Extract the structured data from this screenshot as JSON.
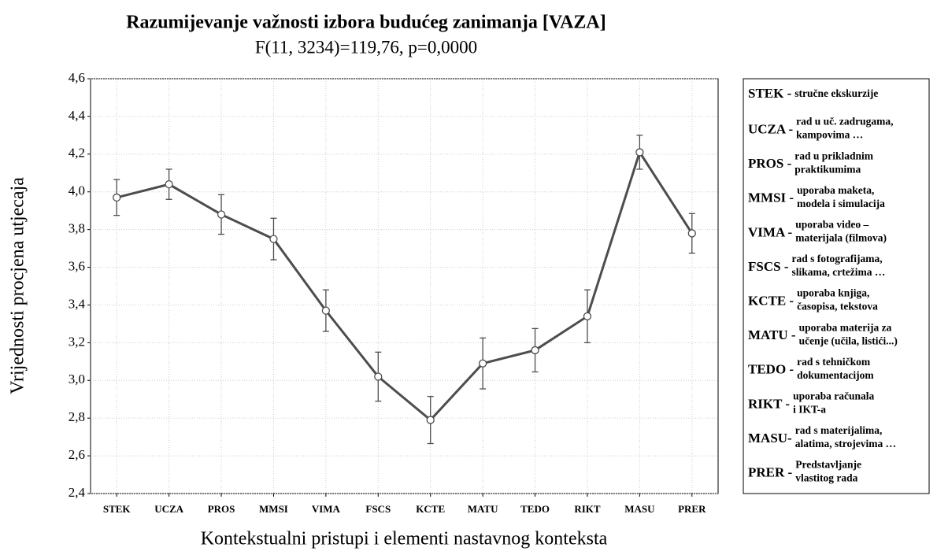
{
  "chart_data": {
    "type": "line",
    "title": "Razumijevanje važnosti izbora budućeg zanimanja [VAZA]",
    "subtitle": "F(11, 3234)=119,76, p=0,0000",
    "x_label": "Kontekstualni pristupi i elementi nastavnog konteksta",
    "y_label": "Vrijednosti procjena utjecaja",
    "categories": [
      "STEK",
      "UCZA",
      "PROS",
      "MMSI",
      "VIMA",
      "FSCS",
      "KCTE",
      "MATU",
      "TEDO",
      "RIKT",
      "MASU",
      "PRER"
    ],
    "values": [
      3.97,
      4.04,
      3.88,
      3.75,
      3.37,
      3.02,
      2.79,
      3.09,
      3.16,
      3.34,
      4.21,
      3.78
    ],
    "errors": [
      0.095,
      0.08,
      0.105,
      0.11,
      0.11,
      0.13,
      0.125,
      0.135,
      0.115,
      0.14,
      0.09,
      0.105
    ],
    "color": "#4d4d4d",
    "ylim": [
      2.4,
      4.6
    ],
    "yticks": [
      {
        "value": 2.4,
        "label": "2,4"
      },
      {
        "value": 2.6,
        "label": "2,6"
      },
      {
        "value": 2.8,
        "label": "2,8"
      },
      {
        "value": 3.0,
        "label": "3,0"
      },
      {
        "value": 3.2,
        "label": "3,2"
      },
      {
        "value": 3.4,
        "label": "3,4"
      },
      {
        "value": 3.6,
        "label": "3,6"
      },
      {
        "value": 3.8,
        "label": "3,8"
      },
      {
        "value": 4.0,
        "label": "4,0"
      },
      {
        "value": 4.2,
        "label": "4,2"
      },
      {
        "value": 4.4,
        "label": "4,4"
      },
      {
        "value": 4.6,
        "label": "4,6"
      }
    ],
    "grid": true,
    "legend": [
      {
        "code": "STEK -",
        "lines": [
          "stručne ekskurzije"
        ]
      },
      {
        "code": "UCZA -",
        "lines": [
          "rad u uč. zadrugama,",
          "kampovima …"
        ]
      },
      {
        "code": "PROS -",
        "lines": [
          "rad u prikladnim",
          "praktikumima"
        ]
      },
      {
        "code": "MMSI -",
        "lines": [
          "uporaba maketa,",
          "modela i simulacija"
        ]
      },
      {
        "code": "VIMA -",
        "lines": [
          "uporaba video –",
          "materijala (filmova)"
        ]
      },
      {
        "code": "FSCS -",
        "lines": [
          "rad s fotografijama,",
          "slikama, crtežima …"
        ]
      },
      {
        "code": "KCTE -",
        "lines": [
          "uporaba knjiga,",
          "časopisa, tekstova"
        ]
      },
      {
        "code": "MATU -",
        "lines": [
          "uporaba materija za",
          "učenje (učila, listići...)"
        ]
      },
      {
        "code": "TEDO -",
        "lines": [
          "rad s tehničkom",
          "dokumentacijom"
        ]
      },
      {
        "code": "RIKT -",
        "lines": [
          "uporaba računala",
          "i IKT-a"
        ]
      },
      {
        "code": "MASU-",
        "lines": [
          "rad s materijalima,",
          "alatima, strojevima …"
        ]
      },
      {
        "code": "PRER -",
        "lines": [
          "Predstavljanje",
          "vlastitog rada"
        ]
      }
    ]
  }
}
